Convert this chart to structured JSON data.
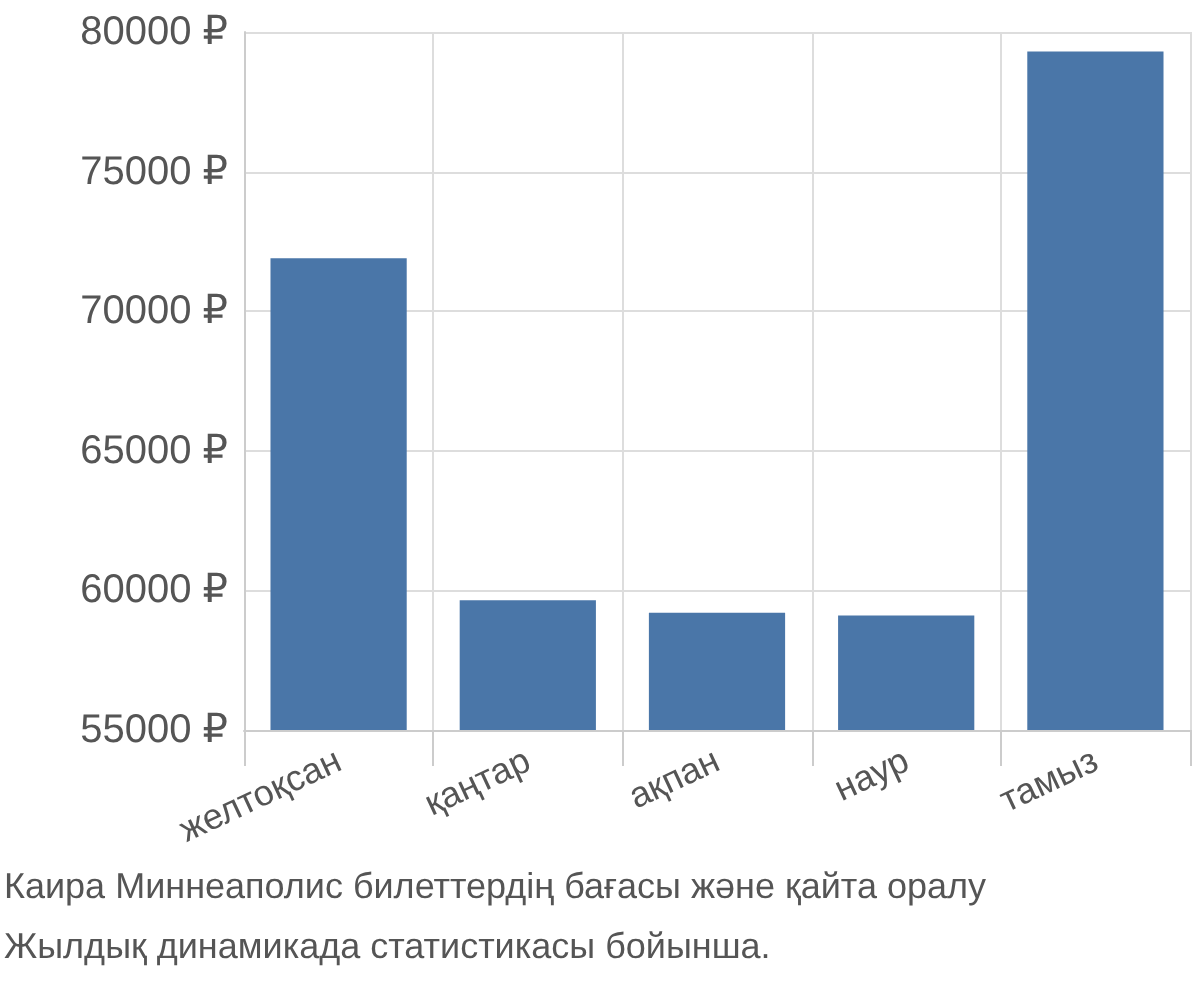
{
  "chart_data": {
    "type": "bar",
    "categories": [
      "желтоқсан",
      "қаңтар",
      "ақпан",
      "наур",
      "тамыз"
    ],
    "values": [
      71900,
      59650,
      59200,
      59100,
      79300
    ],
    "color": "#4a76a8",
    "ylim": [
      55000,
      80000
    ],
    "yticks": [
      {
        "value": 55000,
        "label": "55000 ₽"
      },
      {
        "value": 60000,
        "label": "60000 ₽"
      },
      {
        "value": 65000,
        "label": "65000 ₽"
      },
      {
        "value": 70000,
        "label": "70000 ₽"
      },
      {
        "value": 75000,
        "label": "75000 ₽"
      },
      {
        "value": 80000,
        "label": "80000 ₽"
      }
    ],
    "grid": true,
    "annotations": [
      "Каира Миннеаполис билеттердің бағасы және қайта оралу",
      "Жылдық динамикада статистикасы бойынша."
    ]
  }
}
